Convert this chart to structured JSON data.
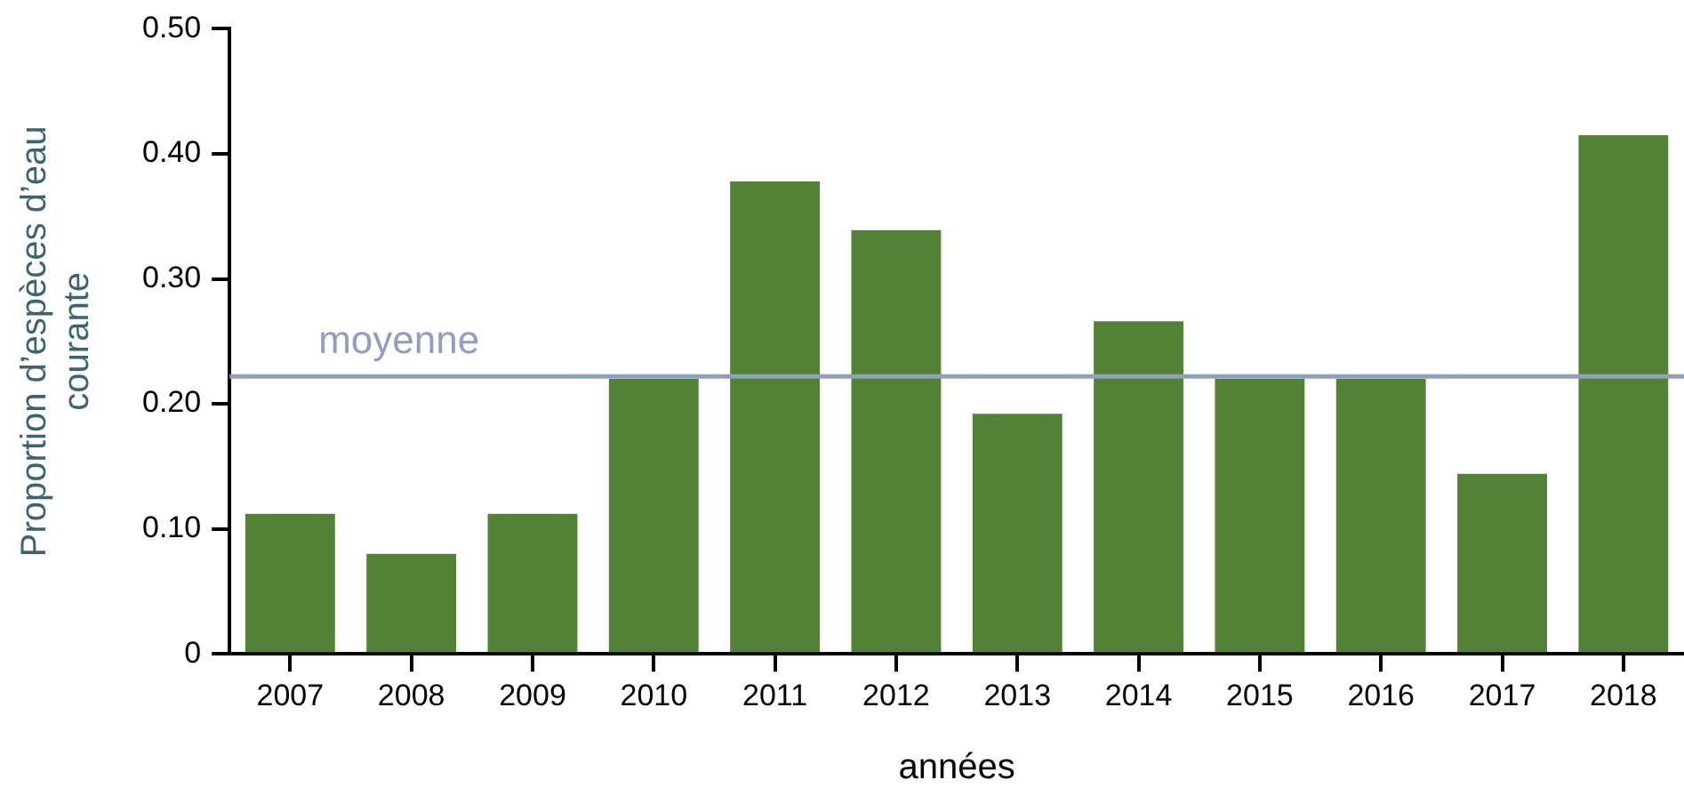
{
  "chart_data": {
    "type": "bar",
    "xlabel": "années",
    "ylabel": "Proportion d’espèces d’eau courante",
    "categories": [
      "2007",
      "2008",
      "2009",
      "2010",
      "2011",
      "2012",
      "2013",
      "2014",
      "2015",
      "2016",
      "2017",
      "2018"
    ],
    "values": [
      0.112,
      0.08,
      0.112,
      0.22,
      0.378,
      0.339,
      0.192,
      0.266,
      0.22,
      0.22,
      0.144,
      0.415
    ],
    "color": "#538135",
    "ylim": [
      0,
      0.5
    ],
    "yticks": [
      0,
      {
        "value": 0.1,
        "label": "0.10"
      },
      {
        "value": 0.2,
        "label": "0.20"
      },
      {
        "value": 0.3,
        "label": "0.30"
      },
      {
        "value": 0.4,
        "label": "0.40"
      },
      {
        "value": 0.5,
        "label": "0.50"
      }
    ],
    "ref_lines": [
      {
        "axis": "y",
        "value": 0.222,
        "label": "moyenne",
        "color": "#8ea0bd"
      }
    ],
    "grid": false,
    "legend": false
  }
}
